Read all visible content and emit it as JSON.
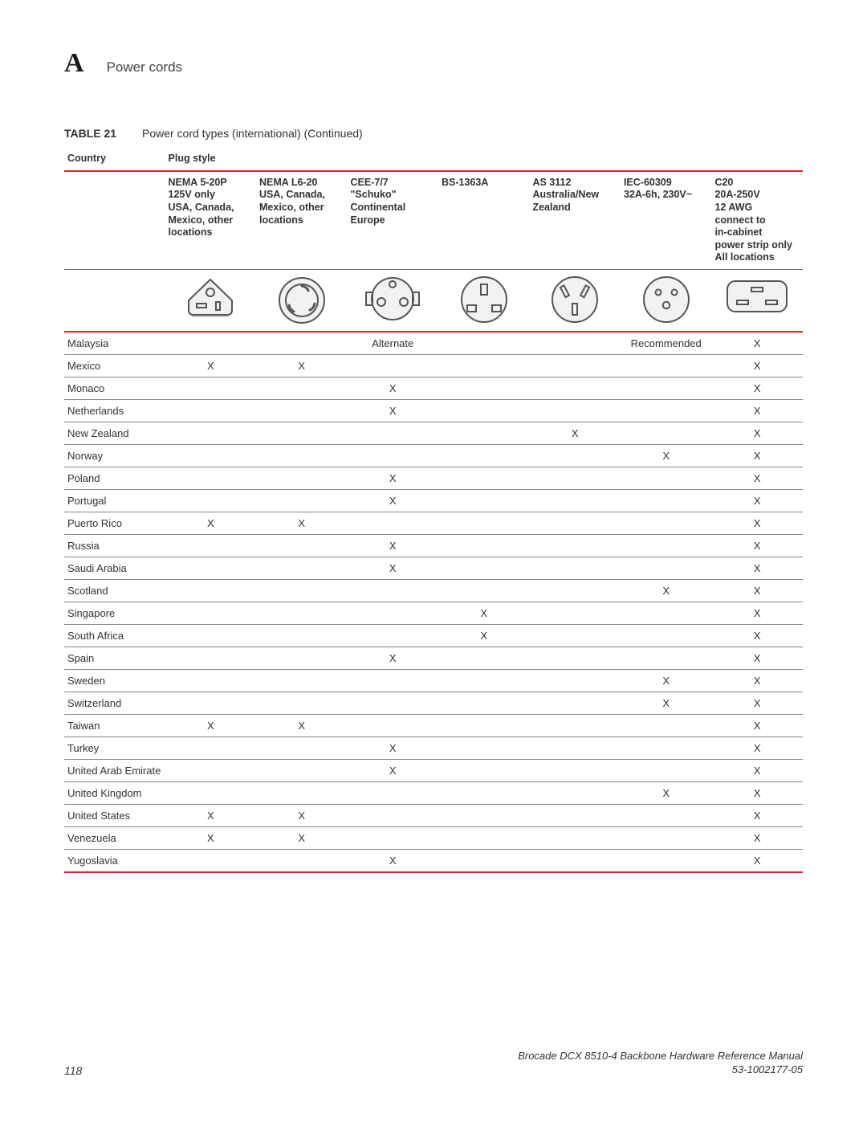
{
  "appendix": {
    "letter": "A",
    "title": "Power cords"
  },
  "caption": {
    "label": "TABLE 21",
    "text": "Power cord types (international) (Continued)"
  },
  "accent_color": "#d9232e",
  "headers": {
    "country": "Country",
    "plugstyle": "Plug style",
    "nema520p": "NEMA 5-20P\n125V only\nUSA, Canada,\nMexico, other\nlocations",
    "nemal620": "NEMA L6-20\nUSA, Canada,\nMexico, other\nlocations",
    "cee77": "CEE-7/7\n\"Schuko\"\nContinental\nEurope",
    "bs1363a": "BS-1363A",
    "as3112": "AS 3112\nAustralia/New\nZealand",
    "iec60309": "IEC-60309\n32A-6h, 230V~",
    "c20": "C20\n20A-250V\n12 AWG\nconnect to\nin-cabinet\npower strip only\nAll locations"
  },
  "marks": {
    "x": "X",
    "alt": "Alternate",
    "rec": "Recommended"
  },
  "rows": [
    {
      "country": "Malaysia",
      "cells": [
        "",
        "",
        "Alternate",
        "",
        "",
        "Recommended",
        "X"
      ]
    },
    {
      "country": "Mexico",
      "cells": [
        "X",
        "X",
        "",
        "",
        "",
        "",
        "X"
      ]
    },
    {
      "country": "Monaco",
      "cells": [
        "",
        "",
        "X",
        "",
        "",
        "",
        "X"
      ]
    },
    {
      "country": "Netherlands",
      "cells": [
        "",
        "",
        "X",
        "",
        "",
        "",
        "X"
      ]
    },
    {
      "country": "New Zealand",
      "cells": [
        "",
        "",
        "",
        "",
        "X",
        "",
        "X"
      ]
    },
    {
      "country": "Norway",
      "cells": [
        "",
        "",
        "",
        "",
        "",
        "X",
        "X"
      ]
    },
    {
      "country": "Poland",
      "cells": [
        "",
        "",
        "X",
        "",
        "",
        "",
        "X"
      ]
    },
    {
      "country": "Portugal",
      "cells": [
        "",
        "",
        "X",
        "",
        "",
        "",
        "X"
      ]
    },
    {
      "country": "Puerto Rico",
      "cells": [
        "X",
        "X",
        "",
        "",
        "",
        "",
        "X"
      ]
    },
    {
      "country": "Russia",
      "cells": [
        "",
        "",
        "X",
        "",
        "",
        "",
        "X"
      ]
    },
    {
      "country": "Saudi Arabia",
      "cells": [
        "",
        "",
        "X",
        "",
        "",
        "",
        "X"
      ]
    },
    {
      "country": "Scotland",
      "cells": [
        "",
        "",
        "",
        "",
        "",
        "X",
        "X"
      ]
    },
    {
      "country": "Singapore",
      "cells": [
        "",
        "",
        "",
        "X",
        "",
        "",
        "X"
      ]
    },
    {
      "country": "South Africa",
      "cells": [
        "",
        "",
        "",
        "X",
        "",
        "",
        "X"
      ]
    },
    {
      "country": "Spain",
      "cells": [
        "",
        "",
        "X",
        "",
        "",
        "",
        "X"
      ]
    },
    {
      "country": "Sweden",
      "cells": [
        "",
        "",
        "",
        "",
        "",
        "X",
        "X"
      ]
    },
    {
      "country": "Switzerland",
      "cells": [
        "",
        "",
        "",
        "",
        "",
        "X",
        "X"
      ]
    },
    {
      "country": "Taiwan",
      "cells": [
        "X",
        "X",
        "",
        "",
        "",
        "",
        "X"
      ]
    },
    {
      "country": "Turkey",
      "cells": [
        "",
        "",
        "X",
        "",
        "",
        "",
        "X"
      ]
    },
    {
      "country": "United Arab Emirate",
      "cells": [
        "",
        "",
        "X",
        "",
        "",
        "",
        "X"
      ]
    },
    {
      "country": "United Kingdom",
      "cells": [
        "",
        "",
        "",
        "",
        "",
        "X",
        "X"
      ]
    },
    {
      "country": "United States",
      "cells": [
        "X",
        "X",
        "",
        "",
        "",
        "",
        "X"
      ]
    },
    {
      "country": "Venezuela",
      "cells": [
        "X",
        "X",
        "",
        "",
        "",
        "",
        "X"
      ]
    },
    {
      "country": "Yugoslavia",
      "cells": [
        "",
        "",
        "X",
        "",
        "",
        "",
        "X"
      ]
    }
  ],
  "footer": {
    "page": "118",
    "doc_title": "Brocade DCX 8510-4 Backbone Hardware Reference Manual",
    "doc_num": "53-1002177-05"
  }
}
